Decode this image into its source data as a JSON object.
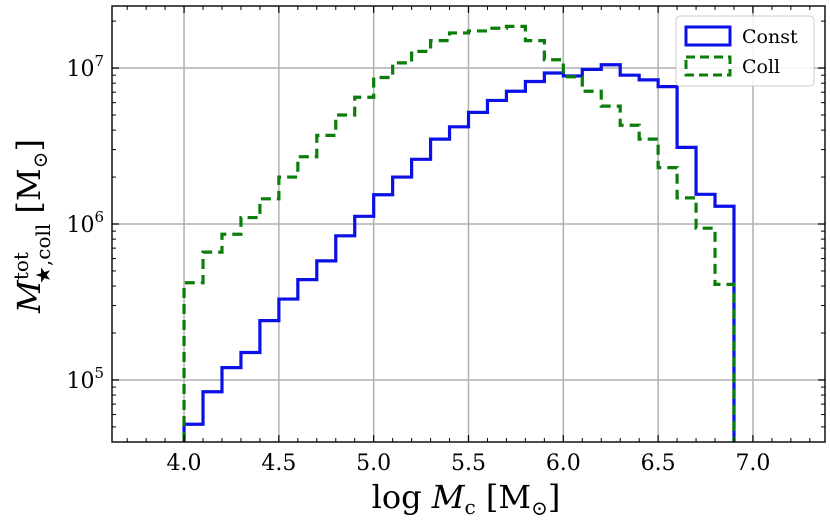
{
  "chart_data": {
    "type": "histogram-step",
    "xlabel": "log M_c [M_⊙]",
    "ylabel": "M_{★,coll}^{tot} [M_⊙]",
    "xlim": [
      3.62,
      7.38
    ],
    "ylim": [
      40000,
      25000000
    ],
    "yscale": "log",
    "grid": true,
    "legend_position": "top-right",
    "x_ticks": [
      4.0,
      4.5,
      5.0,
      5.5,
      6.0,
      6.5,
      7.0
    ],
    "x_tick_labels": [
      "4.0",
      "4.5",
      "5.0",
      "5.5",
      "6.0",
      "6.5",
      "7.0"
    ],
    "y_ticks": [
      100000,
      1000000,
      10000000
    ],
    "y_tick_labels": [
      "10^5",
      "10^6",
      "10^7"
    ],
    "bin_edges": [
      4.0,
      4.1,
      4.2,
      4.3,
      4.4,
      4.5,
      4.6,
      4.7,
      4.8,
      4.9,
      5.0,
      5.1,
      5.2,
      5.3,
      5.4,
      5.5,
      5.6,
      5.7,
      5.8,
      5.9,
      6.0,
      6.1,
      6.2,
      6.3,
      6.4,
      6.5,
      6.6,
      6.7,
      6.8,
      6.9
    ],
    "series": [
      {
        "name": "Const",
        "color": "#0a10e6",
        "linestyle": "solid",
        "values": [
          52000,
          84000,
          120000,
          150000,
          240000,
          330000,
          440000,
          580000,
          840000,
          1120000,
          1540000,
          2000000,
          2600000,
          3500000,
          4200000,
          5200000,
          6200000,
          7100000,
          8200000,
          9300000,
          8900000,
          9800000,
          10500000,
          9000000,
          8400000,
          7600000,
          3100000,
          1550000,
          1300000
        ]
      },
      {
        "name": "Coll",
        "color": "#0a7d0a",
        "linestyle": "dashed",
        "values": [
          420000,
          660000,
          860000,
          1100000,
          1450000,
          2000000,
          2700000,
          3700000,
          5000000,
          6500000,
          8700000,
          10800000,
          12800000,
          15000000,
          16800000,
          17300000,
          18000000,
          18500000,
          15000000,
          11300000,
          8800000,
          7100000,
          5700000,
          4300000,
          3500000,
          2300000,
          1470000,
          940000,
          410000
        ]
      }
    ]
  }
}
